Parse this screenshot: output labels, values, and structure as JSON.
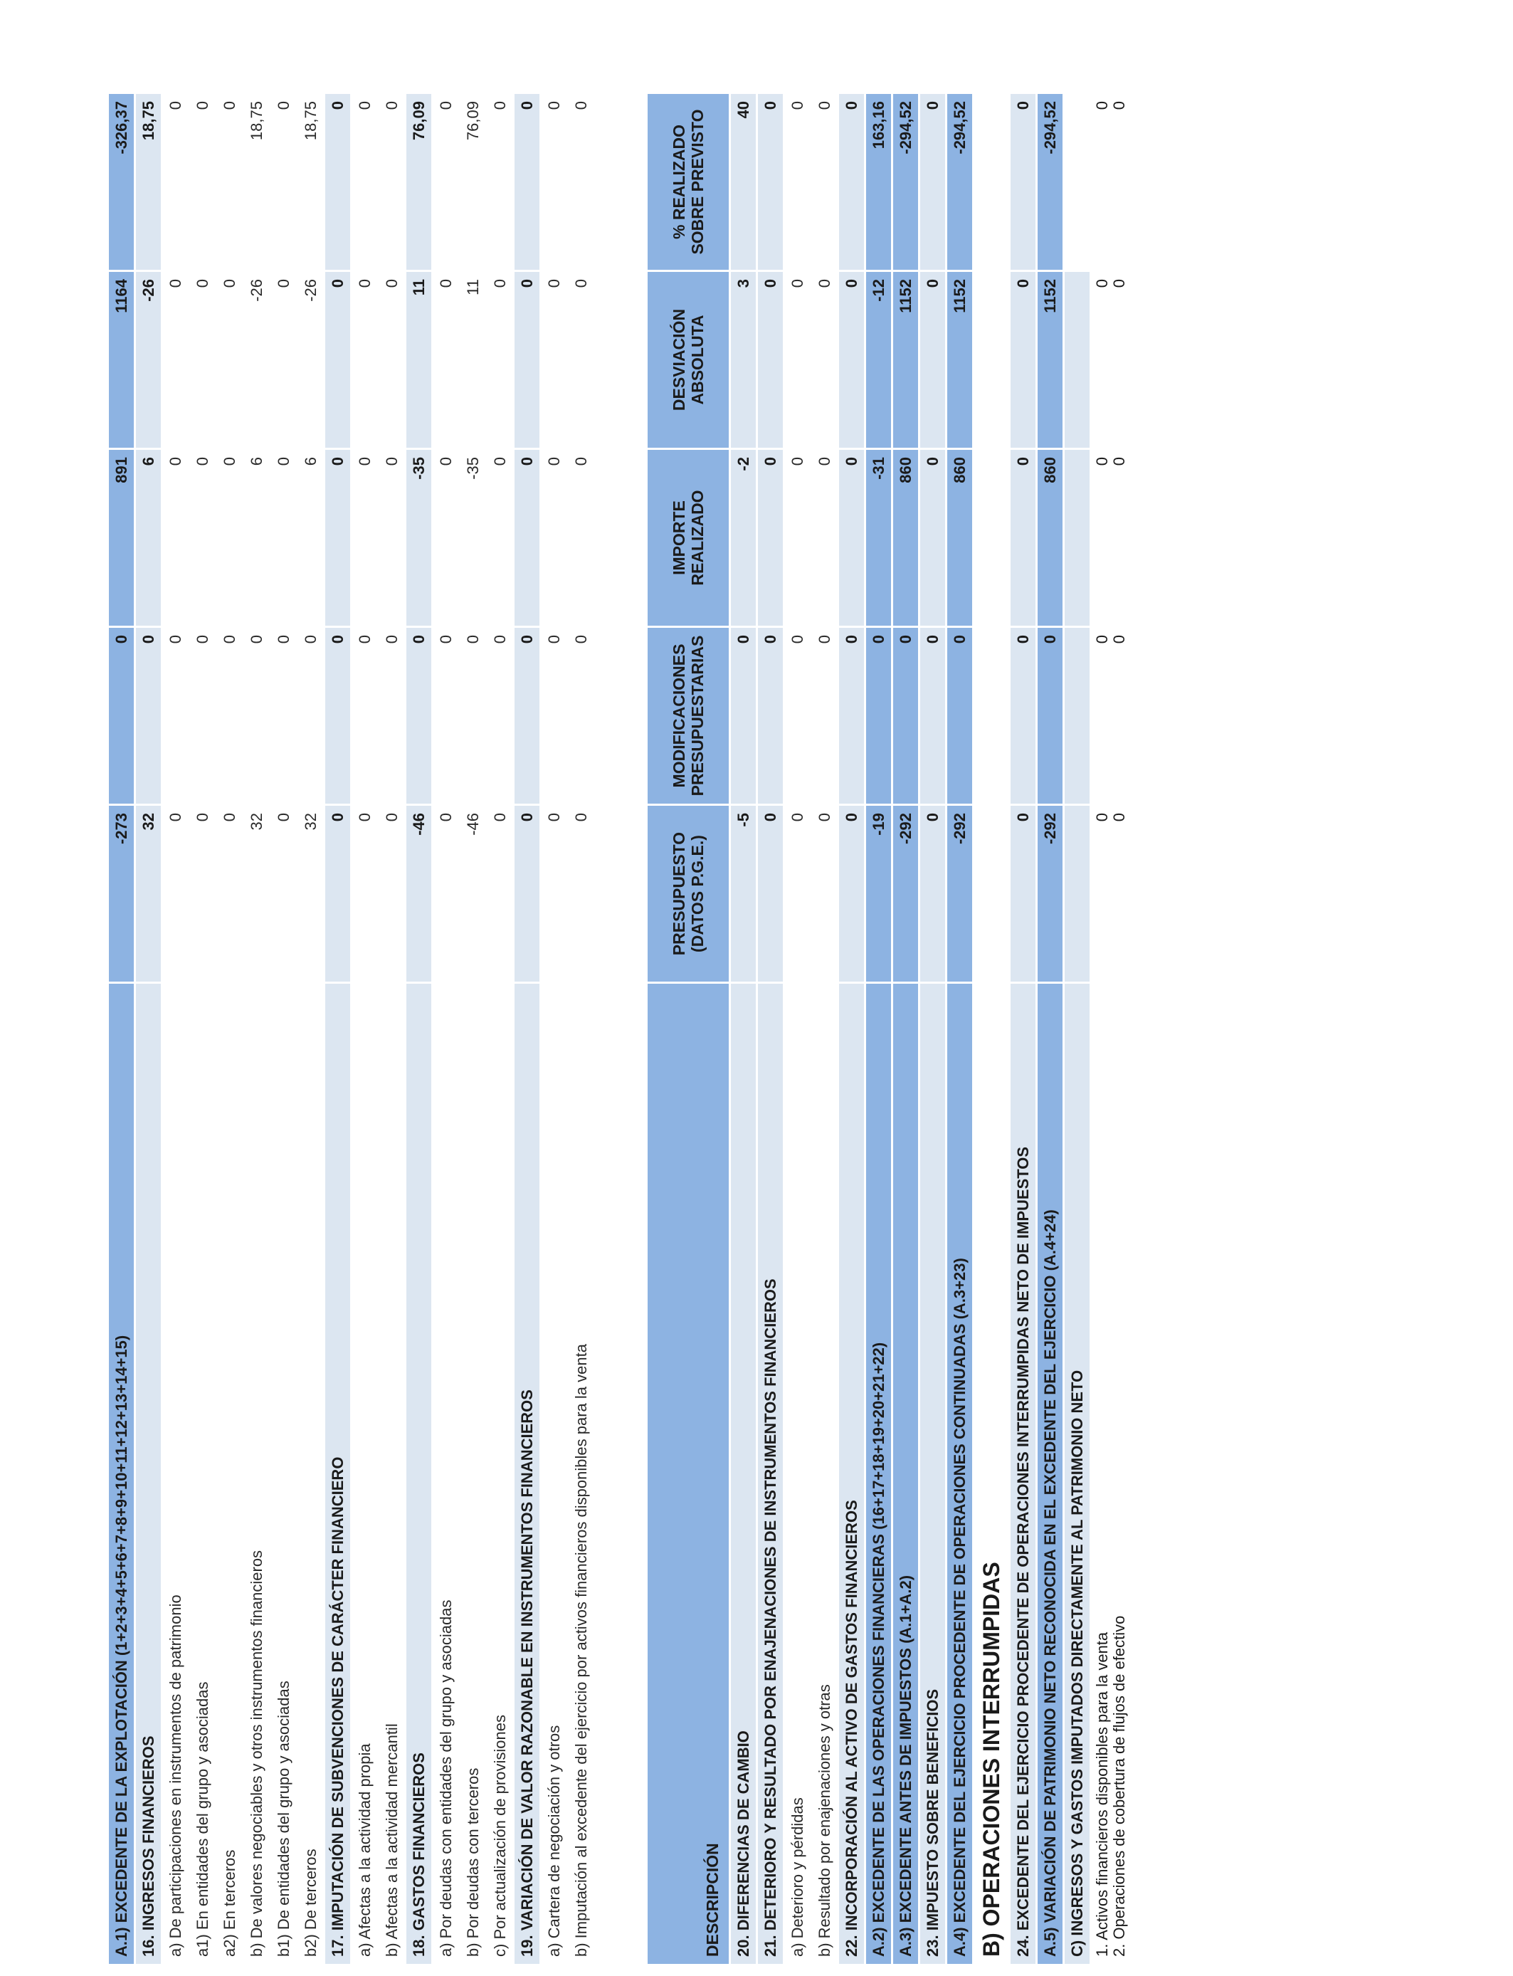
{
  "headers": {
    "descripcion": "DESCRIPCIÓN",
    "presupuesto": "PRESUPUESTO (DATOS P.G.E.)",
    "modificaciones": "MODIFICACIONES PRESUPUESTARIAS",
    "importe": "IMPORTE REALIZADO",
    "desviacion": "DESVIACIÓN ABSOLUTA",
    "porcentaje": "% REALIZADO SOBRE PREVISTO"
  },
  "block1": [
    {
      "type": "total",
      "label": "A.1) EXCEDENTE DE LA EXPLOTACIÓN (1+2+3+4+5+6+7+8+9+10+11+12+13+14+15)",
      "values": [
        "-273",
        "0",
        "891",
        "1164",
        "-326,37"
      ]
    },
    {
      "type": "main",
      "label": "16. INGRESOS FINANCIEROS",
      "values": [
        "32",
        "0",
        "6",
        "-26",
        "18,75"
      ]
    },
    {
      "type": "sub",
      "label": "a) De participaciones en instrumentos de patrimonio",
      "values": [
        "0",
        "0",
        "0",
        "0",
        "0"
      ]
    },
    {
      "type": "sub",
      "label": "a1) En entidades del grupo y asociadas",
      "values": [
        "0",
        "0",
        "0",
        "0",
        "0"
      ]
    },
    {
      "type": "sub",
      "label": "a2) En terceros",
      "values": [
        "0",
        "0",
        "0",
        "0",
        "0"
      ]
    },
    {
      "type": "sub",
      "label": "b) De valores negociables y otros instrumentos financieros",
      "values": [
        "32",
        "0",
        "6",
        "-26",
        "18,75"
      ]
    },
    {
      "type": "sub",
      "label": "b1) De entidades del grupo y asociadas",
      "values": [
        "0",
        "0",
        "0",
        "0",
        "0"
      ]
    },
    {
      "type": "sub",
      "label": "b2) De terceros",
      "values": [
        "32",
        "0",
        "6",
        "-26",
        "18,75"
      ]
    },
    {
      "type": "main",
      "label": "17. IMPUTACIÓN DE SUBVENCIONES DE CARÁCTER FINANCIERO",
      "values": [
        "0",
        "0",
        "0",
        "0",
        "0"
      ]
    },
    {
      "type": "sub",
      "label": "a) Afectas a la actividad propia",
      "values": [
        "0",
        "0",
        "0",
        "0",
        "0"
      ]
    },
    {
      "type": "sub",
      "label": "b) Afectas a la actividad mercantil",
      "values": [
        "0",
        "0",
        "0",
        "0",
        "0"
      ]
    },
    {
      "type": "main",
      "label": "18. GASTOS FINANCIEROS",
      "values": [
        "-46",
        "0",
        "-35",
        "11",
        "76,09"
      ]
    },
    {
      "type": "sub",
      "label": "a) Por deudas con entidades del grupo y asociadas",
      "values": [
        "0",
        "0",
        "0",
        "0",
        "0"
      ]
    },
    {
      "type": "sub",
      "label": "b) Por deudas con terceros",
      "values": [
        "-46",
        "0",
        "-35",
        "11",
        "76,09"
      ]
    },
    {
      "type": "sub",
      "label": "c) Por actualización de provisiones",
      "values": [
        "0",
        "0",
        "0",
        "0",
        "0"
      ]
    },
    {
      "type": "main",
      "label": "19. VARIACIÓN DE VALOR RAZONABLE EN INSTRUMENTOS FINANCIEROS",
      "values": [
        "0",
        "0",
        "0",
        "0",
        "0"
      ]
    },
    {
      "type": "sub",
      "label": "a) Cartera de negociación y otros",
      "values": [
        "0",
        "0",
        "0",
        "0",
        "0"
      ]
    },
    {
      "type": "sub",
      "label": "b) Imputación al excedente del ejercicio por activos financieros disponibles para la venta",
      "values": [
        "0",
        "0",
        "0",
        "0",
        "0"
      ]
    }
  ],
  "block2": [
    {
      "type": "main",
      "label": "20. DIFERENCIAS DE CAMBIO",
      "values": [
        "-5",
        "0",
        "-2",
        "3",
        "40"
      ]
    },
    {
      "type": "main",
      "label": "21. DETERIORO Y RESULTADO POR ENAJENACIONES DE INSTRUMENTOS FINANCIEROS",
      "values": [
        "0",
        "0",
        "0",
        "0",
        "0"
      ]
    },
    {
      "type": "sub",
      "label": "a) Deterioro y pérdidas",
      "values": [
        "0",
        "0",
        "0",
        "0",
        "0"
      ]
    },
    {
      "type": "sub",
      "label": "b) Resultado por enajenaciones y otras",
      "values": [
        "0",
        "0",
        "0",
        "0",
        "0"
      ]
    },
    {
      "type": "main",
      "label": "22. INCORPORACIÓN AL ACTIVO DE GASTOS FINANCIEROS",
      "values": [
        "0",
        "0",
        "0",
        "0",
        "0"
      ]
    },
    {
      "type": "total",
      "label": "A.2) EXCEDENTE DE LAS OPERACIONES FINANCIERAS (16+17+18+19+20+21+22)",
      "values": [
        "-19",
        "0",
        "-31",
        "-12",
        "163,16"
      ]
    },
    {
      "type": "total",
      "label": "A.3) EXCEDENTE ANTES DE IMPUESTOS (A.1+A.2)",
      "values": [
        "-292",
        "0",
        "860",
        "1152",
        "-294,52"
      ]
    },
    {
      "type": "main",
      "label": "23. IMPUESTO SOBRE BENEFICIOS",
      "values": [
        "0",
        "0",
        "0",
        "0",
        "0"
      ]
    },
    {
      "type": "total",
      "label": "A.4) EXCEDENTE DEL EJERCICIO PROCEDENTE DE OPERACIONES CONTINUADAS (A.3+23)",
      "values": [
        "-292",
        "0",
        "860",
        "1152",
        "-294,52"
      ]
    }
  ],
  "section_b": "B) OPERACIONES INTERRUMPIDAS",
  "block3": [
    {
      "type": "main",
      "label": "24. EXCEDENTE DEL EJERCICIO PROCEDENTE DE OPERACIONES INTERRUMPIDAS NETO DE IMPUESTOS",
      "values": [
        "0",
        "0",
        "0",
        "0",
        "0"
      ]
    },
    {
      "type": "total",
      "label": "A.5) VARIACIÓN DE PATRIMONIO NETO RECONOCIDA EN EL EXCEDENTE DEL EJERCICIO (A.4+24)",
      "values": [
        "-292",
        "0",
        "860",
        "1152",
        "-294,52"
      ]
    },
    {
      "type": "main",
      "label": "C) INGRESOS Y GASTOS IMPUTADOS DIRECTAMENTE AL PATRIMONIO NETO",
      "values": [
        "",
        "",
        "",
        "",
        ""
      ]
    }
  ],
  "pair_rows": {
    "lines": [
      "1. Activos financieros disponibles para la venta",
      "2. Operaciones de cobertura de flujos de efectivo"
    ],
    "values": [
      [
        "0",
        "0"
      ],
      [
        "0",
        "0"
      ],
      [
        "0",
        "0"
      ],
      [
        "0",
        "0"
      ],
      [
        "0",
        "0"
      ]
    ]
  }
}
